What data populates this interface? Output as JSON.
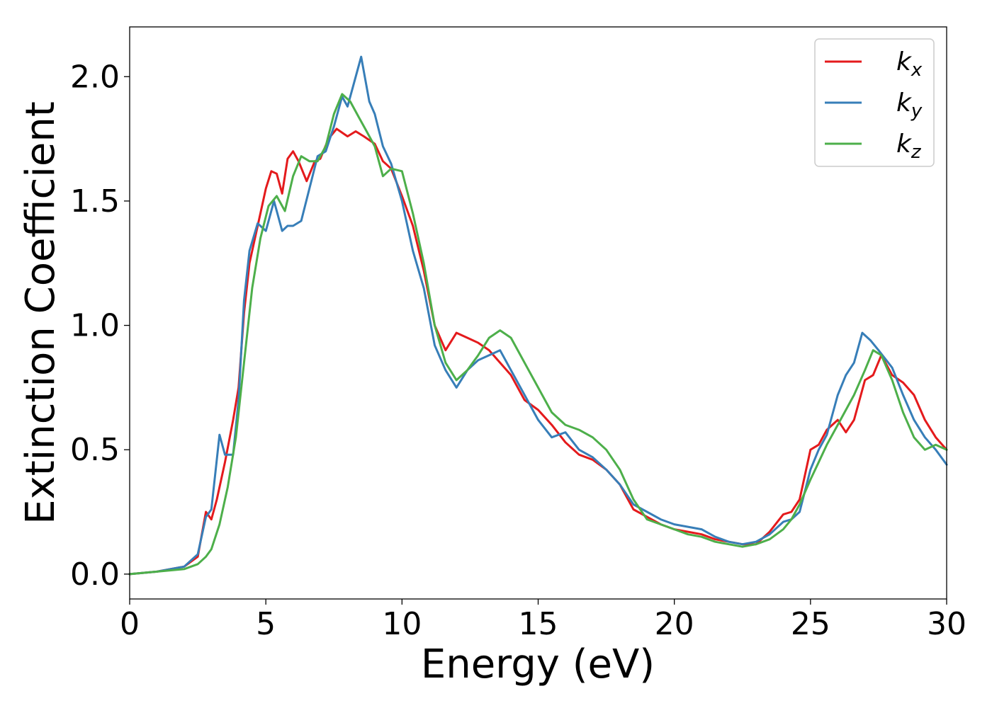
{
  "chart_data": {
    "type": "line",
    "title": "",
    "xlabel": "Energy (eV)",
    "ylabel": "Extinction Coefficient",
    "xlim": [
      0,
      30
    ],
    "ylim": [
      -0.1,
      2.2
    ],
    "xticks": [
      0,
      5,
      10,
      15,
      20,
      25,
      30
    ],
    "xtick_labels": [
      "0",
      "5",
      "10",
      "15",
      "20",
      "25",
      "30"
    ],
    "yticks": [
      0.0,
      0.5,
      1.0,
      1.5,
      2.0
    ],
    "ytick_labels": [
      "0.0",
      "0.5",
      "1.0",
      "1.5",
      "2.0"
    ],
    "grid": false,
    "legend_position": "top-right",
    "series": [
      {
        "name": "k_x",
        "legend_base": "k",
        "legend_sub": "x",
        "color": "#e41a1c",
        "x": [
          0,
          1,
          2,
          2.5,
          2.8,
          3.0,
          3.2,
          3.5,
          3.8,
          4.0,
          4.2,
          4.4,
          4.6,
          4.8,
          5.0,
          5.2,
          5.4,
          5.6,
          5.8,
          6.0,
          6.2,
          6.5,
          6.8,
          7.0,
          7.3,
          7.6,
          8.0,
          8.3,
          8.6,
          9.0,
          9.3,
          9.6,
          10.0,
          10.4,
          10.8,
          11.2,
          11.6,
          12.0,
          12.4,
          12.8,
          13.2,
          13.6,
          14.0,
          14.5,
          15.0,
          15.5,
          16.0,
          16.5,
          17.0,
          17.5,
          18.0,
          18.5,
          19.0,
          19.5,
          20.0,
          20.5,
          21.0,
          21.5,
          22.0,
          22.5,
          23.0,
          23.5,
          24.0,
          24.3,
          24.6,
          25.0,
          25.3,
          25.6,
          26.0,
          26.3,
          26.6,
          27.0,
          27.3,
          27.6,
          28.0,
          28.4,
          28.8,
          29.2,
          29.6,
          30.0
        ],
        "y": [
          0.0,
          0.01,
          0.03,
          0.07,
          0.25,
          0.22,
          0.3,
          0.45,
          0.62,
          0.75,
          1.05,
          1.25,
          1.35,
          1.45,
          1.55,
          1.62,
          1.61,
          1.53,
          1.67,
          1.7,
          1.66,
          1.58,
          1.66,
          1.67,
          1.75,
          1.79,
          1.76,
          1.78,
          1.76,
          1.73,
          1.66,
          1.63,
          1.52,
          1.4,
          1.22,
          1.0,
          0.9,
          0.97,
          0.95,
          0.93,
          0.9,
          0.85,
          0.8,
          0.7,
          0.66,
          0.6,
          0.53,
          0.48,
          0.46,
          0.42,
          0.36,
          0.26,
          0.23,
          0.2,
          0.18,
          0.17,
          0.16,
          0.14,
          0.13,
          0.12,
          0.12,
          0.17,
          0.24,
          0.25,
          0.3,
          0.5,
          0.52,
          0.58,
          0.62,
          0.57,
          0.62,
          0.78,
          0.8,
          0.88,
          0.8,
          0.77,
          0.72,
          0.62,
          0.55,
          0.5
        ]
      },
      {
        "name": "k_y",
        "legend_base": "k",
        "legend_sub": "y",
        "color": "#377eb8",
        "x": [
          0,
          1,
          2,
          2.5,
          2.8,
          3.0,
          3.3,
          3.5,
          3.8,
          4.0,
          4.2,
          4.4,
          4.7,
          5.0,
          5.3,
          5.6,
          5.8,
          6.0,
          6.3,
          6.6,
          6.9,
          7.2,
          7.5,
          7.8,
          8.0,
          8.2,
          8.5,
          8.8,
          9.0,
          9.3,
          9.6,
          10.0,
          10.4,
          10.8,
          11.2,
          11.6,
          12.0,
          12.4,
          12.8,
          13.2,
          13.6,
          14.0,
          14.5,
          15.0,
          15.5,
          16.0,
          16.5,
          17.0,
          17.5,
          18.0,
          18.5,
          19.0,
          19.5,
          20.0,
          20.5,
          21.0,
          21.5,
          22.0,
          22.5,
          23.0,
          23.5,
          24.0,
          24.3,
          24.6,
          25.0,
          25.3,
          25.6,
          26.0,
          26.3,
          26.6,
          26.9,
          27.2,
          27.5,
          28.0,
          28.4,
          28.8,
          29.2,
          29.6,
          30.0
        ],
        "y": [
          0.0,
          0.01,
          0.03,
          0.08,
          0.23,
          0.26,
          0.56,
          0.48,
          0.48,
          0.7,
          1.1,
          1.3,
          1.41,
          1.38,
          1.5,
          1.38,
          1.4,
          1.4,
          1.42,
          1.55,
          1.68,
          1.7,
          1.8,
          1.92,
          1.88,
          1.96,
          2.08,
          1.9,
          1.85,
          1.72,
          1.65,
          1.5,
          1.3,
          1.15,
          0.92,
          0.82,
          0.75,
          0.82,
          0.86,
          0.88,
          0.9,
          0.82,
          0.72,
          0.62,
          0.55,
          0.57,
          0.5,
          0.47,
          0.42,
          0.36,
          0.28,
          0.25,
          0.22,
          0.2,
          0.19,
          0.18,
          0.15,
          0.13,
          0.12,
          0.13,
          0.16,
          0.21,
          0.22,
          0.25,
          0.42,
          0.5,
          0.56,
          0.72,
          0.8,
          0.85,
          0.97,
          0.94,
          0.9,
          0.83,
          0.72,
          0.62,
          0.55,
          0.5,
          0.44
        ]
      },
      {
        "name": "k_z",
        "legend_base": "k",
        "legend_sub": "z",
        "color": "#4daf4a",
        "x": [
          0,
          1,
          2,
          2.5,
          2.8,
          3.0,
          3.3,
          3.6,
          3.9,
          4.2,
          4.5,
          4.8,
          5.1,
          5.4,
          5.7,
          6.0,
          6.3,
          6.6,
          6.9,
          7.2,
          7.5,
          7.8,
          8.1,
          8.4,
          8.7,
          9.0,
          9.3,
          9.6,
          10.0,
          10.4,
          10.8,
          11.2,
          11.6,
          12.0,
          12.4,
          12.8,
          13.2,
          13.6,
          14.0,
          14.5,
          15.0,
          15.5,
          16.0,
          16.5,
          17.0,
          17.5,
          18.0,
          18.5,
          19.0,
          19.5,
          20.0,
          20.5,
          21.0,
          21.5,
          22.0,
          22.5,
          23.0,
          23.5,
          24.0,
          24.3,
          24.6,
          25.0,
          25.3,
          25.6,
          26.0,
          26.3,
          26.6,
          27.0,
          27.3,
          27.6,
          28.0,
          28.4,
          28.8,
          29.2,
          29.6,
          30.0
        ],
        "y": [
          0.0,
          0.01,
          0.02,
          0.04,
          0.07,
          0.1,
          0.2,
          0.35,
          0.55,
          0.85,
          1.15,
          1.35,
          1.48,
          1.52,
          1.46,
          1.6,
          1.68,
          1.66,
          1.66,
          1.72,
          1.85,
          1.93,
          1.9,
          1.84,
          1.78,
          1.72,
          1.6,
          1.63,
          1.62,
          1.45,
          1.25,
          1.0,
          0.85,
          0.78,
          0.82,
          0.88,
          0.95,
          0.98,
          0.95,
          0.85,
          0.75,
          0.65,
          0.6,
          0.58,
          0.55,
          0.5,
          0.42,
          0.3,
          0.22,
          0.2,
          0.18,
          0.16,
          0.15,
          0.13,
          0.12,
          0.11,
          0.12,
          0.14,
          0.18,
          0.22,
          0.28,
          0.38,
          0.45,
          0.52,
          0.6,
          0.66,
          0.72,
          0.82,
          0.9,
          0.88,
          0.78,
          0.65,
          0.55,
          0.5,
          0.52,
          0.5
        ]
      }
    ]
  }
}
